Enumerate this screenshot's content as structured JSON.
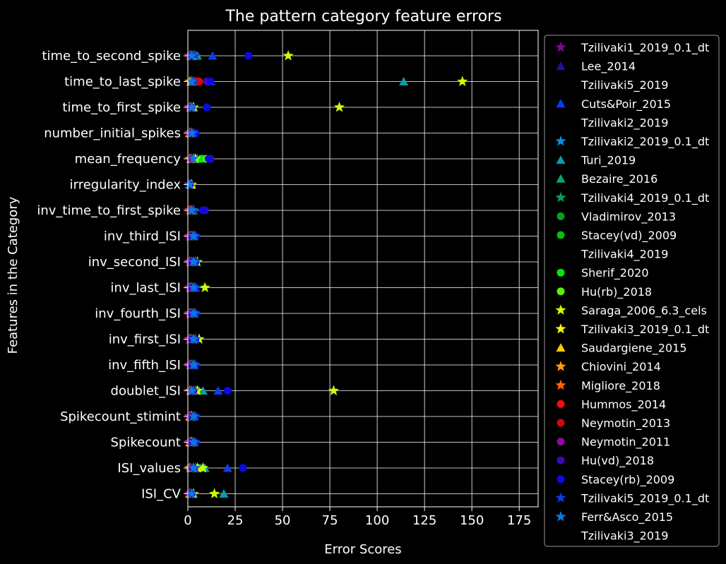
{
  "chart_data": {
    "type": "scatter",
    "title": "The pattern category feature errors",
    "xlabel": "Error Scores",
    "ylabel": "Features in the Category",
    "xlim": [
      0,
      185
    ],
    "xticks": [
      0,
      25,
      50,
      75,
      100,
      125,
      150,
      175
    ],
    "grid": true,
    "legend_position": "right-outside",
    "categories": [
      "time_to_second_spike",
      "time_to_last_spike",
      "time_to_first_spike",
      "number_initial_spikes",
      "mean_frequency",
      "irregularity_index",
      "inv_time_to_first_spike",
      "inv_third_ISI",
      "inv_second_ISI",
      "inv_last_ISI",
      "inv_fourth_ISI",
      "inv_first_ISI",
      "inv_fifth_ISI",
      "doublet_ISI",
      "Spikecount_stimint",
      "Spikecount",
      "ISI_values",
      "ISI_CV"
    ],
    "series": [
      {
        "name": "Tzilivaki1_2019_0.1_dt",
        "marker": "star",
        "color": "#7d0a8c",
        "values": [
          1,
          1,
          1,
          1,
          1,
          0.5,
          1,
          1,
          1,
          1,
          1,
          1,
          1,
          1,
          1,
          1,
          1,
          1
        ]
      },
      {
        "name": "Lee_2014",
        "marker": "triangle",
        "color": "#2a0aa0",
        "values": [
          3,
          3,
          2,
          2,
          2,
          1,
          2,
          2,
          2,
          2,
          2,
          2,
          2,
          3,
          2,
          2,
          3,
          2
        ]
      },
      {
        "name": "Tzilivaki5_2019",
        "marker": "none",
        "color": "#000000",
        "values": [
          null,
          null,
          null,
          null,
          null,
          null,
          null,
          null,
          null,
          null,
          null,
          null,
          null,
          null,
          null,
          null,
          null,
          null
        ]
      },
      {
        "name": "Cuts&Poir_2015",
        "marker": "triangle",
        "color": "#0a3cf0",
        "values": [
          13,
          12,
          3,
          3,
          4,
          1,
          3,
          3,
          3,
          4,
          3,
          3,
          3,
          16,
          3,
          3,
          21,
          3
        ]
      },
      {
        "name": "Tzilivaki2_2019",
        "marker": "none",
        "color": "#000000",
        "values": [
          null,
          null,
          null,
          null,
          null,
          null,
          null,
          null,
          null,
          null,
          null,
          null,
          null,
          null,
          null,
          null,
          null,
          null
        ]
      },
      {
        "name": "Tzilivaki2_2019_0.1_dt",
        "marker": "star",
        "color": "#0a8cdc",
        "values": [
          3,
          2,
          2,
          2,
          3,
          1,
          2,
          3,
          3,
          3,
          2,
          3,
          2,
          3,
          2,
          2,
          3,
          2
        ]
      },
      {
        "name": "Turi_2019",
        "marker": "triangle",
        "color": "#0a9caa",
        "values": [
          5,
          114,
          3,
          2,
          5,
          1,
          2,
          3,
          3,
          3,
          3,
          3,
          3,
          8,
          3,
          3,
          9,
          19
        ]
      },
      {
        "name": "Bezaire_2016",
        "marker": "triangle",
        "color": "#0aa078",
        "values": [
          4,
          3,
          2,
          2,
          3,
          1,
          2,
          2,
          2,
          3,
          2,
          2,
          2,
          6,
          2,
          2,
          7,
          2
        ]
      },
      {
        "name": "Tzilivaki4_2019_0.1_dt",
        "marker": "star",
        "color": "#0a9c50",
        "values": [
          2,
          2,
          2,
          1,
          2,
          1,
          2,
          2,
          2,
          2,
          2,
          2,
          2,
          4,
          2,
          2,
          5,
          2
        ]
      },
      {
        "name": "Vladimirov_2013",
        "marker": "circle",
        "color": "#0aa01e",
        "values": [
          3,
          4,
          2,
          2,
          9,
          1,
          2,
          2,
          2,
          2,
          2,
          2,
          2,
          5,
          2,
          2,
          6,
          2
        ]
      },
      {
        "name": "Stacey(vd)_2009",
        "marker": "circle",
        "color": "#0abe0a",
        "values": [
          2,
          3,
          1,
          1,
          8,
          1,
          1,
          2,
          2,
          2,
          2,
          2,
          2,
          4,
          2,
          2,
          1,
          1
        ]
      },
      {
        "name": "Tzilivaki4_2019",
        "marker": "none",
        "color": "#000000",
        "values": [
          null,
          null,
          null,
          null,
          null,
          null,
          null,
          null,
          null,
          null,
          null,
          null,
          null,
          null,
          null,
          null,
          null,
          null
        ]
      },
      {
        "name": "Sherif_2020",
        "marker": "circle",
        "color": "#0ae60a",
        "values": [
          2,
          4,
          1,
          1,
          7,
          1,
          1,
          2,
          2,
          2,
          2,
          2,
          2,
          3,
          2,
          2,
          4,
          1
        ]
      },
      {
        "name": "Hu(rb)_2018",
        "marker": "circle",
        "color": "#5af00a",
        "values": [
          2,
          5,
          1,
          1,
          10,
          1,
          1,
          2,
          2,
          2,
          2,
          2,
          2,
          3,
          2,
          2,
          5,
          1
        ]
      },
      {
        "name": "Saraga_2006_6.3_cels",
        "marker": "star",
        "color": "#c8ff0a",
        "values": [
          53,
          145,
          80,
          2,
          4,
          2,
          3,
          3,
          5,
          9,
          4,
          6,
          3,
          77,
          2,
          2,
          8,
          14
        ]
      },
      {
        "name": "Tzilivaki3_2019_0.1_dt",
        "marker": "star",
        "color": "#f0f00a",
        "values": [
          4,
          3,
          3,
          2,
          3,
          2,
          3,
          3,
          4,
          4,
          3,
          4,
          3,
          5,
          2,
          2,
          5,
          3
        ]
      },
      {
        "name": "Saudargiene_2015",
        "marker": "triangle",
        "color": "#ffc80a",
        "values": [
          2,
          2,
          2,
          1,
          2,
          2,
          2,
          2,
          2,
          2,
          2,
          2,
          2,
          2,
          1,
          1,
          2,
          1
        ]
      },
      {
        "name": "Chiovini_2014",
        "marker": "star",
        "color": "#ffa00a",
        "values": [
          1,
          1,
          1,
          1,
          1,
          1,
          1,
          1,
          1,
          1,
          1,
          1,
          1,
          1,
          1,
          1,
          1,
          1
        ]
      },
      {
        "name": "Migliore_2018",
        "marker": "star",
        "color": "#ff640a",
        "values": [
          2,
          2,
          2,
          1,
          1,
          1,
          2,
          1,
          1,
          2,
          1,
          1,
          1,
          1,
          1,
          1,
          1,
          1
        ]
      },
      {
        "name": "Hummos_2014",
        "marker": "circle",
        "color": "#ff0a0a",
        "values": [
          1,
          5,
          1,
          1,
          2,
          1,
          1,
          1,
          1,
          1,
          1,
          1,
          1,
          2,
          1,
          1,
          2,
          1
        ]
      },
      {
        "name": "Neymotin_2013",
        "marker": "circle",
        "color": "#d20a0a",
        "values": [
          1,
          6,
          1,
          1,
          2,
          1,
          1,
          1,
          1,
          1,
          1,
          1,
          1,
          2,
          1,
          1,
          2,
          1
        ]
      },
      {
        "name": "Neymotin_2011",
        "marker": "circle",
        "color": "#8c0a9c",
        "values": [
          1,
          3,
          1,
          1,
          2,
          1,
          2,
          1,
          1,
          1,
          1,
          1,
          1,
          2,
          1,
          1,
          2,
          1
        ]
      },
      {
        "name": "Hu(vd)_2018",
        "marker": "circle",
        "color": "#3c0ab4",
        "values": [
          2,
          10,
          2,
          2,
          12,
          1,
          9,
          2,
          2,
          2,
          2,
          2,
          2,
          3,
          2,
          2,
          3,
          2
        ]
      },
      {
        "name": "Stacey(rb)_2009",
        "marker": "circle",
        "color": "#0a0ae6",
        "values": [
          32,
          12,
          10,
          4,
          11,
          1,
          8,
          4,
          4,
          4,
          4,
          4,
          4,
          21,
          4,
          4,
          29,
          2
        ]
      },
      {
        "name": "Tzilivaki5_2019_0.1_dt",
        "marker": "star",
        "color": "#0a3cdc",
        "values": [
          4,
          3,
          2,
          3,
          3,
          1,
          3,
          4,
          4,
          4,
          4,
          4,
          4,
          3,
          4,
          4,
          4,
          2
        ]
      },
      {
        "name": "Ferr&Asco_2015",
        "marker": "star",
        "color": "#0a78dc",
        "values": [
          2,
          2,
          2,
          2,
          3,
          1,
          2,
          3,
          3,
          3,
          3,
          3,
          3,
          2,
          3,
          3,
          3,
          2
        ]
      },
      {
        "name": "Tzilivaki3_2019",
        "marker": "none",
        "color": "#000000",
        "values": [
          null,
          null,
          null,
          null,
          null,
          null,
          null,
          null,
          null,
          null,
          null,
          null,
          null,
          null,
          null,
          null,
          null,
          null
        ]
      }
    ]
  }
}
